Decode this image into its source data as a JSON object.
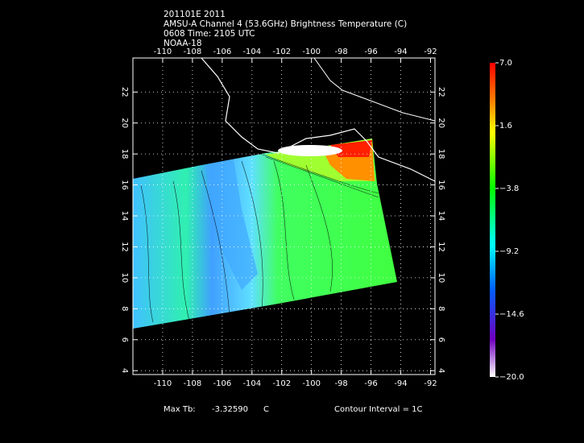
{
  "header": {
    "lines": [
      "201101E 2011",
      "AMSU-A Channel 4 (53.6GHz) Brightness Temperature (C)",
      "0608 Time: 2105 UTC",
      "NOAA-18"
    ]
  },
  "map": {
    "lon_range": [
      -112,
      -91.7
    ],
    "lat_range": [
      3.75,
      24.2
    ],
    "xticks": [
      -110,
      -108,
      -106,
      -104,
      -102,
      -100,
      -98,
      -96,
      -94,
      -92
    ],
    "yticks": [
      4,
      6,
      8,
      10,
      12,
      14,
      16,
      18,
      20,
      22
    ]
  },
  "colorbar": {
    "range": [
      -20,
      7
    ],
    "ticks": [
      {
        "value": 7,
        "label": "7.0"
      },
      {
        "value": 1.6,
        "label": "1.6"
      },
      {
        "value": -3.8,
        "label": "−3.8"
      },
      {
        "value": -9.2,
        "label": "−9.2"
      },
      {
        "value": -14.6,
        "label": "−14.6"
      },
      {
        "value": -20,
        "label": "−20.0"
      }
    ]
  },
  "footer": {
    "max_label": "Max Tb:",
    "max_value": "-3.32590",
    "max_unit": "C",
    "contour": "Contour Interval = 1C"
  }
}
